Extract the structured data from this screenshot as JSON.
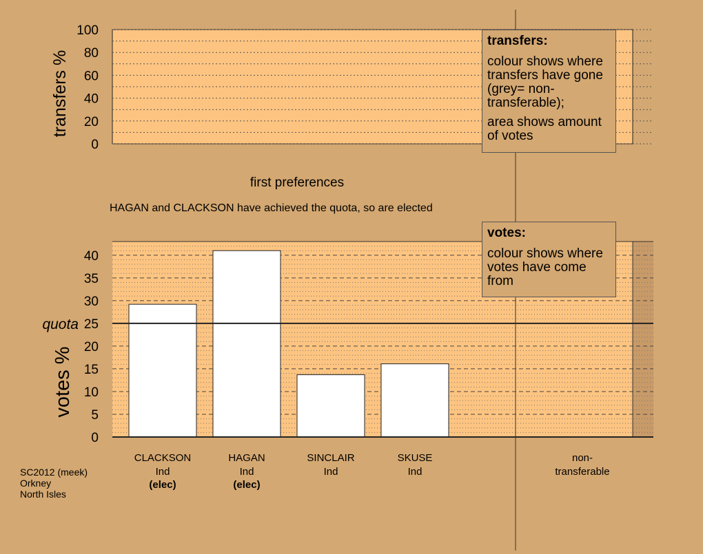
{
  "chart_data": [
    {
      "type": "bar",
      "ylabel": "transfers %",
      "ylim": [
        0,
        100
      ],
      "yticks": [
        0,
        20,
        40,
        60,
        80,
        100
      ],
      "categories": [],
      "values": [],
      "grid": true,
      "legend": {
        "title": "transfers:",
        "paragraphs": [
          "colour shows where transfers have gone (grey= non-transferable);",
          "area shows amount of votes"
        ]
      }
    },
    {
      "type": "bar",
      "title": "first preferences",
      "subtitle": "HAGAN and CLACKSON have achieved the quota, so are elected",
      "ylabel": "votes %",
      "ylim": [
        0,
        43
      ],
      "yticks": [
        0,
        5,
        10,
        15,
        20,
        25,
        30,
        35,
        40
      ],
      "quota": 25,
      "quota_label": "quota",
      "grid": true,
      "bar_color": "#ffffff",
      "categories": [
        "CLACKSON",
        "HAGAN",
        "SINCLAIR",
        "SKUSE"
      ],
      "parties": [
        "Ind",
        "Ind",
        "Ind",
        "Ind"
      ],
      "status": [
        "(elec)",
        "(elec)",
        "",
        ""
      ],
      "values": [
        29.2,
        41.0,
        13.7,
        16.1
      ],
      "nontransferable_label": [
        "non-",
        "transferable"
      ],
      "legend": {
        "title": "votes:",
        "paragraphs": [
          "colour shows where votes have come from"
        ]
      }
    }
  ],
  "caption": [
    "SC2012 (meek)",
    "Orkney",
    "North Isles"
  ],
  "colors": {
    "background": "#d4a872",
    "plot_area": "#fdc481",
    "nontransferable_area": "#c89a68",
    "bar": "#ffffff"
  }
}
